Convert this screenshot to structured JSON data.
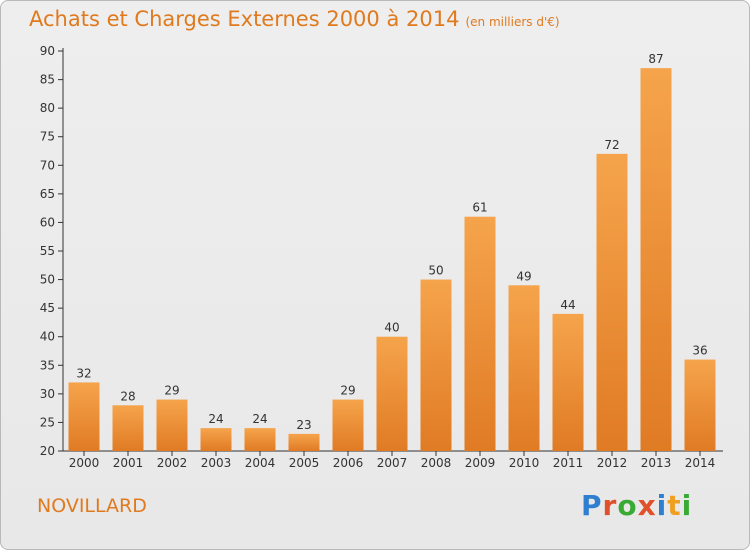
{
  "chart_data": {
    "type": "bar",
    "title": "Achats et Charges Externes 2000 à 2014",
    "subtitle": "(en milliers d'€)",
    "categories": [
      "2000",
      "2001",
      "2002",
      "2003",
      "2004",
      "2005",
      "2006",
      "2007",
      "2008",
      "2009",
      "2010",
      "2011",
      "2012",
      "2013",
      "2014"
    ],
    "values": [
      32,
      28,
      29,
      24,
      24,
      23,
      29,
      40,
      50,
      61,
      49,
      44,
      72,
      87,
      36
    ],
    "ylim": [
      20,
      90
    ],
    "yticks": [
      20,
      25,
      30,
      35,
      40,
      45,
      50,
      55,
      60,
      65,
      70,
      75,
      80,
      85,
      90
    ],
    "grid": false,
    "colors": {
      "bar_light": "#f5a44c",
      "bar_dark": "#e07b24",
      "title": "#e07a1f"
    }
  },
  "footer": {
    "commune": "NOVILLARD",
    "logo": "Proxiti"
  }
}
